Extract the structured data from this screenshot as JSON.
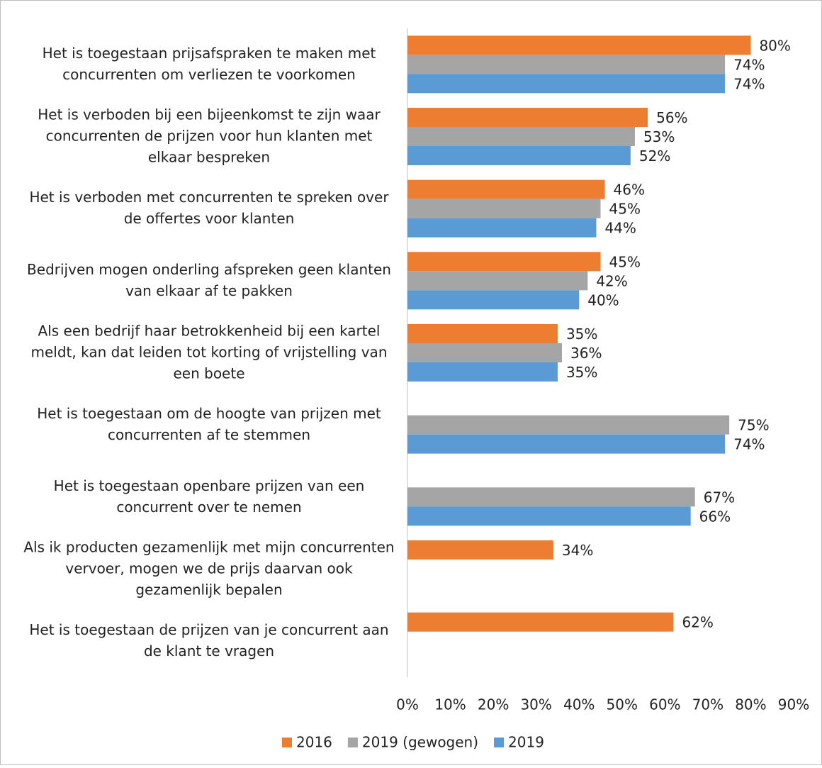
{
  "chart_data": {
    "type": "bar",
    "orientation": "horizontal",
    "categories": [
      "Het is toegestaan prijsafspraken te maken met concurrenten om verliezen te voorkomen",
      "Het is verboden bij een bijeenkomst te zijn waar concurrenten de prijzen voor hun klanten met elkaar bespreken",
      "Het is verboden met concurrenten te spreken over de offertes voor klanten",
      "Bedrijven mogen onderling afspreken geen klanten van elkaar af te pakken",
      "Als een bedrijf haar betrokkenheid bij een kartel meldt, kan dat leiden tot korting of vrijstelling van een boete",
      "Het is toegestaan om de hoogte van prijzen met concurrenten af te stemmen",
      "Het is toegestaan openbare prijzen van een concurrent over te nemen",
      "Als ik producten gezamenlijk met mijn concurrenten vervoer, mogen we de prijs daarvan ook gezamenlijk bepalen",
      "Het is toegestaan de prijzen van je concurrent aan de klant te vragen"
    ],
    "series": [
      {
        "name": "2016",
        "color": "#ed7d31",
        "values": [
          80,
          56,
          46,
          45,
          35,
          null,
          null,
          34,
          62
        ],
        "value_labels": [
          "80%",
          "56%",
          "46%",
          "45%",
          "35%",
          null,
          null,
          "34%",
          "62%"
        ]
      },
      {
        "name": "2019 (gewogen)",
        "color": "#a5a5a5",
        "values": [
          74,
          53,
          45,
          42,
          36,
          75,
          67,
          null,
          null
        ],
        "value_labels": [
          "74%",
          "53%",
          "45%",
          "42%",
          "36%",
          "75%",
          "67%",
          null,
          null
        ]
      },
      {
        "name": "2019",
        "color": "#5b9bd5",
        "values": [
          74,
          52,
          44,
          40,
          35,
          74,
          66,
          null,
          null
        ],
        "value_labels": [
          "74%",
          "52%",
          "44%",
          "40%",
          "35%",
          "74%",
          "66%",
          null,
          null
        ]
      }
    ],
    "xlim": [
      0,
      90
    ],
    "xticks": [
      {
        "value": 0,
        "label": "0%"
      },
      {
        "value": 10,
        "label": "10%"
      },
      {
        "value": 20,
        "label": "20%"
      },
      {
        "value": 30,
        "label": "30%"
      },
      {
        "value": 40,
        "label": "40%"
      },
      {
        "value": 50,
        "label": "50%"
      },
      {
        "value": 60,
        "label": "60%"
      },
      {
        "value": 70,
        "label": "70%"
      },
      {
        "value": 80,
        "label": "80%"
      },
      {
        "value": 90,
        "label": "90%"
      }
    ],
    "grid": false,
    "legend": "bottom"
  }
}
